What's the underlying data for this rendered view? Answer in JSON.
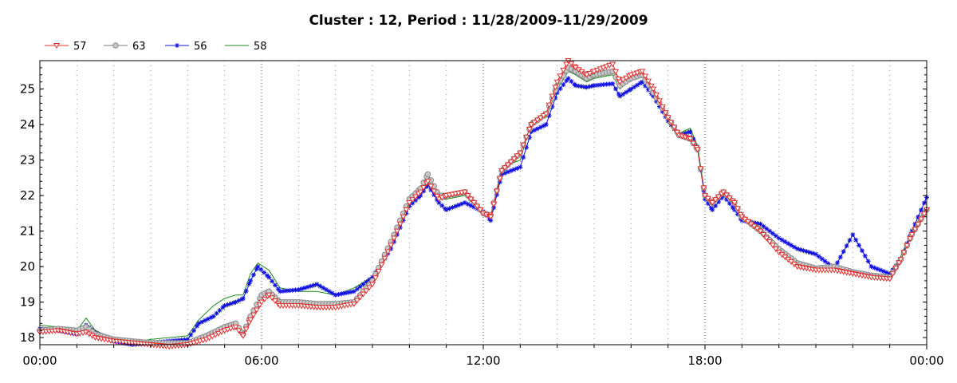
{
  "chart_data": {
    "type": "line",
    "title": "Cluster : 12, Period : 11/28/2009-11/29/2009",
    "xlabel": "",
    "ylabel": "",
    "x_tick_labels": [
      "00:00",
      "06:00",
      "12:00",
      "18:00",
      "00:00"
    ],
    "x_range_hours": [
      0,
      24
    ],
    "ylim": [
      17.8,
      25.8
    ],
    "y_ticks": [
      18,
      19,
      20,
      21,
      22,
      23,
      24,
      25
    ],
    "grid": "dotted",
    "legend_position": "top-left",
    "series": [
      {
        "name": "57",
        "color": "#e03030",
        "marker": "triangle-down",
        "points": [
          [
            0,
            18.15
          ],
          [
            0.5,
            18.2
          ],
          [
            1,
            18.1
          ],
          [
            1.25,
            18.15
          ],
          [
            1.5,
            18.0
          ],
          [
            2,
            17.9
          ],
          [
            2.5,
            17.85
          ],
          [
            3,
            17.8
          ],
          [
            3.5,
            17.75
          ],
          [
            4,
            17.8
          ],
          [
            4.5,
            17.95
          ],
          [
            5,
            18.2
          ],
          [
            5.3,
            18.3
          ],
          [
            5.5,
            18.05
          ],
          [
            5.7,
            18.5
          ],
          [
            6,
            19.0
          ],
          [
            6.2,
            19.2
          ],
          [
            6.5,
            18.9
          ],
          [
            7,
            18.9
          ],
          [
            7.5,
            18.85
          ],
          [
            8,
            18.85
          ],
          [
            8.5,
            18.95
          ],
          [
            9,
            19.5
          ],
          [
            9.5,
            20.6
          ],
          [
            10,
            21.8
          ],
          [
            10.3,
            22.1
          ],
          [
            10.5,
            22.4
          ],
          [
            10.8,
            21.9
          ],
          [
            11,
            22.0
          ],
          [
            11.5,
            22.1
          ],
          [
            12,
            21.5
          ],
          [
            12.2,
            21.4
          ],
          [
            12.5,
            22.7
          ],
          [
            13,
            23.2
          ],
          [
            13.3,
            24.0
          ],
          [
            13.7,
            24.3
          ],
          [
            14,
            25.2
          ],
          [
            14.3,
            25.8
          ],
          [
            14.5,
            25.6
          ],
          [
            14.8,
            25.4
          ],
          [
            15,
            25.5
          ],
          [
            15.5,
            25.7
          ],
          [
            15.7,
            25.2
          ],
          [
            16,
            25.4
          ],
          [
            16.3,
            25.5
          ],
          [
            16.6,
            25.0
          ],
          [
            17,
            24.2
          ],
          [
            17.3,
            23.7
          ],
          [
            17.6,
            23.6
          ],
          [
            17.8,
            23.3
          ],
          [
            18,
            22.0
          ],
          [
            18.2,
            21.8
          ],
          [
            18.5,
            22.1
          ],
          [
            18.8,
            21.8
          ],
          [
            19,
            21.4
          ],
          [
            19.5,
            21.0
          ],
          [
            20,
            20.4
          ],
          [
            20.5,
            20.0
          ],
          [
            21,
            19.9
          ],
          [
            21.5,
            19.9
          ],
          [
            22,
            19.8
          ],
          [
            22.5,
            19.7
          ],
          [
            23,
            19.65
          ],
          [
            23.3,
            20.2
          ],
          [
            23.6,
            20.9
          ],
          [
            24,
            21.6
          ]
        ]
      },
      {
        "name": "63",
        "color": "#7a7a7a",
        "marker": "circle",
        "points": [
          [
            0,
            18.2
          ],
          [
            0.5,
            18.25
          ],
          [
            1,
            18.2
          ],
          [
            1.25,
            18.3
          ],
          [
            1.5,
            18.1
          ],
          [
            2,
            17.95
          ],
          [
            2.5,
            17.9
          ],
          [
            3,
            17.85
          ],
          [
            3.5,
            17.85
          ],
          [
            4,
            17.85
          ],
          [
            4.5,
            18.05
          ],
          [
            5,
            18.3
          ],
          [
            5.3,
            18.4
          ],
          [
            5.5,
            18.1
          ],
          [
            5.7,
            18.6
          ],
          [
            6,
            19.2
          ],
          [
            6.2,
            19.3
          ],
          [
            6.5,
            19.0
          ],
          [
            7,
            19.0
          ],
          [
            7.5,
            18.95
          ],
          [
            8,
            18.95
          ],
          [
            8.5,
            19.0
          ],
          [
            9,
            19.6
          ],
          [
            9.5,
            20.7
          ],
          [
            10,
            21.9
          ],
          [
            10.3,
            22.2
          ],
          [
            10.5,
            22.6
          ],
          [
            10.8,
            22.0
          ],
          [
            11,
            22.0
          ],
          [
            11.5,
            22.1
          ],
          [
            12,
            21.5
          ],
          [
            12.2,
            21.45
          ],
          [
            12.5,
            22.7
          ],
          [
            13,
            23.2
          ],
          [
            13.3,
            24.0
          ],
          [
            13.7,
            24.3
          ],
          [
            14,
            25.1
          ],
          [
            14.3,
            25.6
          ],
          [
            14.5,
            25.5
          ],
          [
            14.8,
            25.3
          ],
          [
            15,
            25.4
          ],
          [
            15.5,
            25.5
          ],
          [
            15.7,
            25.1
          ],
          [
            16,
            25.3
          ],
          [
            16.3,
            25.4
          ],
          [
            16.6,
            24.9
          ],
          [
            17,
            24.2
          ],
          [
            17.3,
            23.7
          ],
          [
            17.6,
            23.6
          ],
          [
            17.8,
            23.3
          ],
          [
            18,
            22.0
          ],
          [
            18.2,
            21.8
          ],
          [
            18.5,
            22.1
          ],
          [
            18.8,
            21.8
          ],
          [
            19,
            21.4
          ],
          [
            19.5,
            21.0
          ],
          [
            20,
            20.5
          ],
          [
            20.5,
            20.1
          ],
          [
            21,
            19.95
          ],
          [
            21.5,
            20.0
          ],
          [
            22,
            19.85
          ],
          [
            22.5,
            19.75
          ],
          [
            23,
            19.7
          ],
          [
            23.3,
            20.2
          ],
          [
            23.6,
            20.9
          ],
          [
            24,
            21.6
          ]
        ]
      },
      {
        "name": "56",
        "color": "#1010e0",
        "marker": "star",
        "points": [
          [
            0,
            18.25
          ],
          [
            0.5,
            18.2
          ],
          [
            1,
            18.1
          ],
          [
            1.25,
            18.35
          ],
          [
            1.5,
            18.15
          ],
          [
            2,
            17.9
          ],
          [
            2.5,
            17.8
          ],
          [
            3,
            17.85
          ],
          [
            3.5,
            17.9
          ],
          [
            4,
            17.95
          ],
          [
            4.3,
            18.4
          ],
          [
            4.7,
            18.6
          ],
          [
            5,
            18.9
          ],
          [
            5.3,
            19.0
          ],
          [
            5.5,
            19.1
          ],
          [
            5.7,
            19.6
          ],
          [
            5.9,
            20.0
          ],
          [
            6.2,
            19.7
          ],
          [
            6.5,
            19.3
          ],
          [
            7,
            19.35
          ],
          [
            7.5,
            19.5
          ],
          [
            8,
            19.2
          ],
          [
            8.5,
            19.3
          ],
          [
            9,
            19.7
          ],
          [
            9.5,
            20.5
          ],
          [
            10,
            21.7
          ],
          [
            10.3,
            22.0
          ],
          [
            10.5,
            22.3
          ],
          [
            10.8,
            21.8
          ],
          [
            11,
            21.6
          ],
          [
            11.5,
            21.8
          ],
          [
            12,
            21.55
          ],
          [
            12.2,
            21.3
          ],
          [
            12.5,
            22.6
          ],
          [
            13,
            22.8
          ],
          [
            13.3,
            23.8
          ],
          [
            13.7,
            24.0
          ],
          [
            14,
            24.9
          ],
          [
            14.3,
            25.3
          ],
          [
            14.5,
            25.1
          ],
          [
            14.8,
            25.05
          ],
          [
            15,
            25.1
          ],
          [
            15.5,
            25.15
          ],
          [
            15.7,
            24.8
          ],
          [
            16,
            25.0
          ],
          [
            16.3,
            25.2
          ],
          [
            16.6,
            24.8
          ],
          [
            17,
            24.1
          ],
          [
            17.3,
            23.7
          ],
          [
            17.6,
            23.8
          ],
          [
            17.8,
            23.3
          ],
          [
            18,
            21.9
          ],
          [
            18.2,
            21.6
          ],
          [
            18.5,
            22.0
          ],
          [
            18.8,
            21.6
          ],
          [
            19,
            21.3
          ],
          [
            19.5,
            21.2
          ],
          [
            20,
            20.8
          ],
          [
            20.5,
            20.5
          ],
          [
            21,
            20.35
          ],
          [
            21.5,
            19.95
          ],
          [
            22,
            20.9
          ],
          [
            22.5,
            20.0
          ],
          [
            23,
            19.8
          ],
          [
            23.3,
            20.2
          ],
          [
            23.6,
            21.0
          ],
          [
            24,
            21.95
          ]
        ]
      },
      {
        "name": "58",
        "color": "#1a8a1a",
        "marker": "none",
        "points": [
          [
            0,
            18.35
          ],
          [
            0.5,
            18.3
          ],
          [
            1,
            18.2
          ],
          [
            1.25,
            18.55
          ],
          [
            1.5,
            18.2
          ],
          [
            2,
            17.95
          ],
          [
            2.5,
            17.85
          ],
          [
            3,
            17.95
          ],
          [
            3.5,
            18.0
          ],
          [
            4,
            18.05
          ],
          [
            4.3,
            18.5
          ],
          [
            4.7,
            18.9
          ],
          [
            5,
            19.1
          ],
          [
            5.3,
            19.2
          ],
          [
            5.5,
            19.2
          ],
          [
            5.7,
            19.8
          ],
          [
            5.9,
            20.1
          ],
          [
            6.2,
            19.9
          ],
          [
            6.5,
            19.4
          ],
          [
            7,
            19.3
          ],
          [
            7.5,
            19.3
          ],
          [
            8,
            19.2
          ],
          [
            8.5,
            19.4
          ],
          [
            9,
            19.7
          ],
          [
            9.5,
            20.6
          ],
          [
            10,
            21.85
          ],
          [
            10.3,
            22.1
          ],
          [
            10.5,
            22.5
          ],
          [
            10.8,
            21.9
          ],
          [
            11,
            21.9
          ],
          [
            11.5,
            22.0
          ],
          [
            12,
            21.55
          ],
          [
            12.2,
            21.4
          ],
          [
            12.5,
            22.8
          ],
          [
            13,
            23.0
          ],
          [
            13.3,
            24.1
          ],
          [
            13.7,
            24.2
          ],
          [
            14,
            25.0
          ],
          [
            14.3,
            25.5
          ],
          [
            14.5,
            25.4
          ],
          [
            14.8,
            25.2
          ],
          [
            15,
            25.3
          ],
          [
            15.5,
            25.4
          ],
          [
            15.7,
            25.0
          ],
          [
            16,
            25.3
          ],
          [
            16.3,
            25.35
          ],
          [
            16.6,
            24.9
          ],
          [
            17,
            24.2
          ],
          [
            17.3,
            23.75
          ],
          [
            17.6,
            23.9
          ],
          [
            17.8,
            23.4
          ],
          [
            18,
            22.0
          ],
          [
            18.2,
            21.8
          ],
          [
            18.5,
            22.1
          ],
          [
            18.8,
            21.8
          ],
          [
            19,
            21.4
          ],
          [
            19.5,
            21.1
          ],
          [
            20,
            20.5
          ],
          [
            20.5,
            20.1
          ],
          [
            21,
            19.95
          ],
          [
            21.5,
            20.0
          ],
          [
            22,
            19.85
          ],
          [
            22.5,
            19.75
          ],
          [
            23,
            19.7
          ],
          [
            23.3,
            20.3
          ],
          [
            23.6,
            21.0
          ],
          [
            24,
            21.7
          ]
        ]
      }
    ]
  }
}
